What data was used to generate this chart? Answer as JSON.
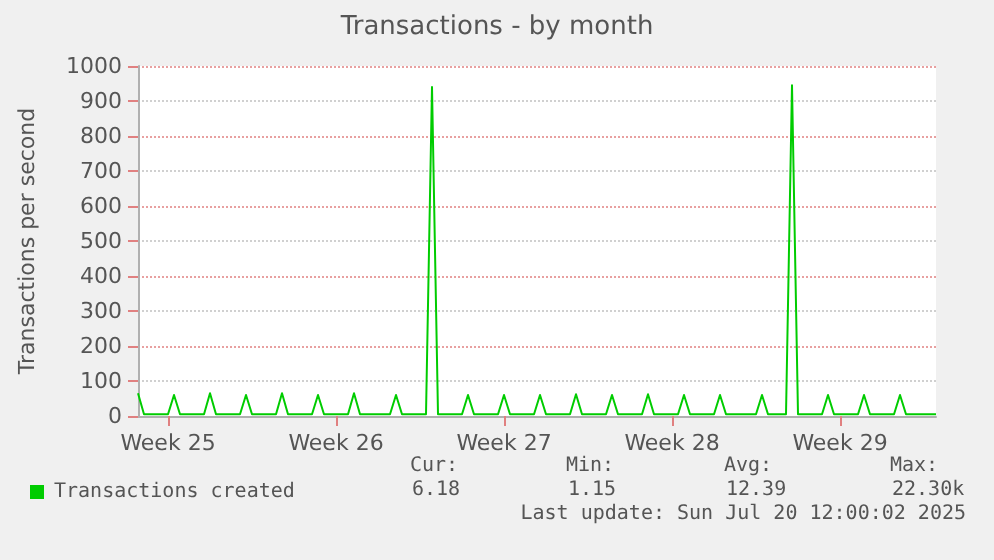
{
  "chart_data": {
    "type": "line",
    "title": "Transactions - by month",
    "ylabel": "Transactions per second",
    "categories": [
      null,
      null,
      null,
      null,
      null,
      "Week 25",
      null,
      null,
      null,
      null,
      null,
      null,
      null,
      null,
      null,
      null,
      null,
      null,
      null,
      null,
      null,
      null,
      null,
      null,
      null,
      null,
      null,
      null,
      null,
      null,
      null,
      null,
      null,
      "Week 26",
      null,
      null,
      null,
      null,
      null,
      null,
      null,
      null,
      null,
      null,
      null,
      null,
      null,
      null,
      null,
      null,
      null,
      null,
      null,
      null,
      null,
      null,
      null,
      null,
      null,
      null,
      null,
      "Week 27",
      null,
      null,
      null,
      null,
      null,
      null,
      null,
      null,
      null,
      null,
      null,
      null,
      null,
      null,
      null,
      null,
      null,
      null,
      null,
      null,
      null,
      null,
      null,
      null,
      null,
      null,
      null,
      "Week 28",
      null,
      null,
      null,
      null,
      null,
      null,
      null,
      null,
      null,
      null,
      null,
      null,
      null,
      null,
      null,
      null,
      null,
      null,
      null,
      null,
      null,
      null,
      null,
      null,
      null,
      null,
      null,
      "Week 29",
      null,
      null,
      null,
      null,
      null,
      null,
      null,
      null,
      null,
      null,
      null,
      null,
      null,
      null,
      null,
      null
    ],
    "ylim": [
      0,
      1000
    ],
    "yticks": [
      0,
      100,
      200,
      300,
      400,
      500,
      600,
      700,
      800,
      900,
      1000
    ],
    "series": [
      {
        "name": "Transactions created",
        "color": "#00cc00",
        "values": [
          65,
          5,
          5,
          5,
          5,
          5,
          60,
          5,
          5,
          5,
          5,
          5,
          65,
          5,
          5,
          5,
          5,
          5,
          60,
          5,
          5,
          5,
          5,
          5,
          65,
          5,
          5,
          5,
          5,
          5,
          60,
          5,
          5,
          5,
          5,
          5,
          65,
          5,
          5,
          5,
          5,
          5,
          5,
          60,
          5,
          5,
          5,
          5,
          5,
          940,
          5,
          5,
          5,
          5,
          5,
          60,
          5,
          5,
          5,
          5,
          5,
          60,
          5,
          5,
          5,
          5,
          5,
          60,
          5,
          5,
          5,
          5,
          5,
          62,
          5,
          5,
          5,
          5,
          5,
          60,
          5,
          5,
          5,
          5,
          5,
          62,
          5,
          5,
          5,
          5,
          5,
          60,
          5,
          5,
          5,
          5,
          5,
          60,
          5,
          5,
          5,
          5,
          5,
          5,
          60,
          5,
          5,
          5,
          5,
          945,
          5,
          5,
          5,
          5,
          5,
          60,
          5,
          5,
          5,
          5,
          5,
          60,
          5,
          5,
          5,
          5,
          5,
          60,
          5,
          5,
          5,
          5,
          5,
          5
        ]
      }
    ],
    "grid": "y",
    "legend": "bottom left",
    "marker": "none",
    "line_style": "solid",
    "annotations": [
      "Cur:",
      "Min:",
      "Avg:",
      "Max:",
      "6.18",
      "1.15",
      "12.39",
      "22.30k",
      "Last update: Sun Jul 20 12:00:02 2025"
    ]
  }
}
